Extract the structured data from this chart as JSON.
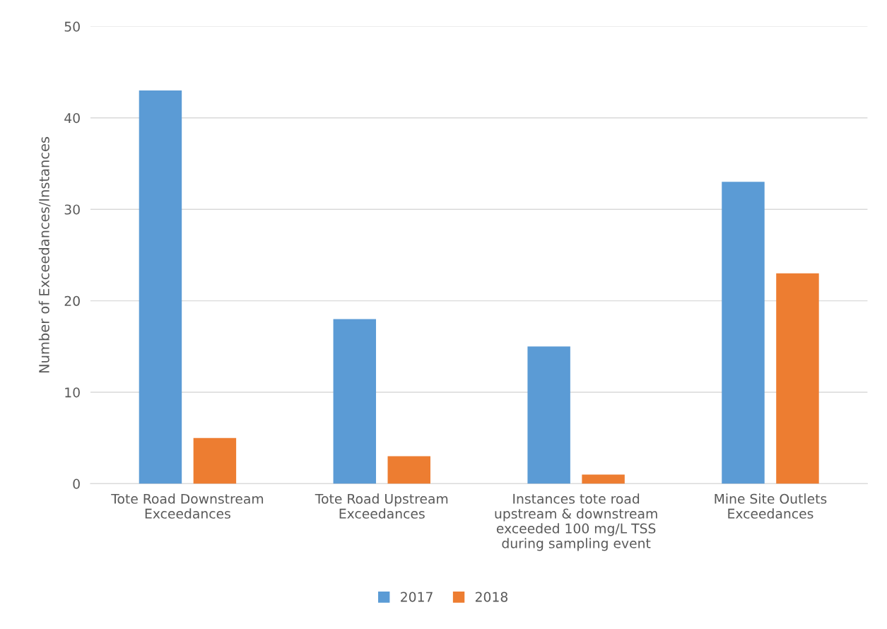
{
  "chart_data": {
    "type": "bar",
    "ylabel": "Number of Exceedances/Instances",
    "categories": [
      "Tote Road Downstream\nExceedances",
      "Tote Road Upstream\nExceedances",
      "Instances tote road\nupstream & downstream\nexceeded 100 mg/L TSS\nduring sampling event",
      "Mine Site Outlets\nExceedances"
    ],
    "series": [
      {
        "name": "2017",
        "color": "#5b9bd5",
        "values": [
          43,
          18,
          15,
          33
        ]
      },
      {
        "name": "2018",
        "color": "#ed7d31",
        "values": [
          5,
          3,
          1,
          23
        ]
      }
    ],
    "ylim": [
      0,
      50
    ],
    "yticks": [
      0,
      10,
      20,
      30,
      40,
      50
    ],
    "grid": "y",
    "legend": "bottom"
  }
}
